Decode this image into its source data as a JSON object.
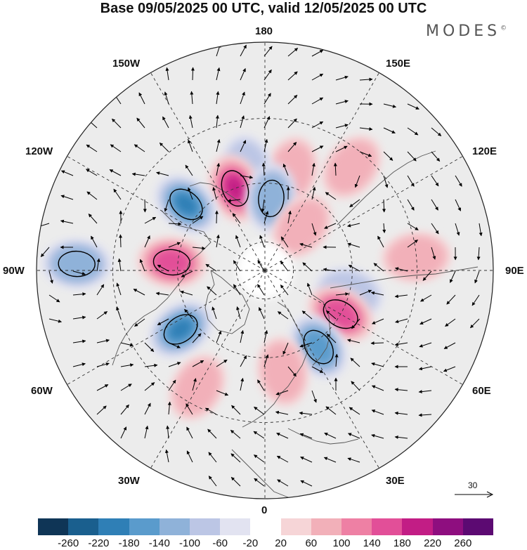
{
  "title": "Base 09/05/2025 00 UTC, valid 12/05/2025 00 UTC",
  "brand": "MODES",
  "brand_mark": "©",
  "longitude_labels": {
    "top": "180",
    "bottom": "0",
    "left": "90W",
    "right": "90E",
    "upper_left_1": "150W",
    "upper_left_2": "120W",
    "upper_right_1": "150E",
    "upper_right_2": "120E",
    "lower_left_1": "60W",
    "lower_left_2": "30W",
    "lower_right_1": "60E",
    "lower_right_2": "30E"
  },
  "vector_scale_label": "30",
  "colorbar": {
    "colors": [
      "#0f3556",
      "#1a5f8e",
      "#2f7fb6",
      "#5a9bcc",
      "#8fb2d9",
      "#bcc6e5",
      "#e2e3f1",
      "#ffffff",
      "#f6d5d7",
      "#f2b0b9",
      "#ee80a4",
      "#e24f98",
      "#c21d85",
      "#8e0e7f",
      "#5c0a72"
    ],
    "ticks": [
      "-260",
      "-220",
      "-180",
      "-140",
      "-100",
      "-60",
      "-20",
      "20",
      "60",
      "100",
      "140",
      "180",
      "220",
      "260"
    ]
  },
  "anomalies": [
    {
      "lon": 165,
      "lat": 55,
      "value": 70,
      "shape": "broad ridge"
    },
    {
      "lon": 140,
      "lat": 45,
      "value": 60,
      "shape": "broad ridge"
    },
    {
      "lon": -170,
      "lat": 55,
      "value": -70,
      "shape": "trough"
    },
    {
      "lon": -160,
      "lat": 60,
      "value": 200,
      "shape": "strong ridge"
    },
    {
      "lon": -130,
      "lat": 55,
      "value": -190,
      "shape": "deep trough"
    },
    {
      "lon": 175,
      "lat": 65,
      "value": -110,
      "shape": "trough"
    },
    {
      "lon": 140,
      "lat": 70,
      "value": 80,
      "shape": "ridge"
    },
    {
      "lon": -95,
      "lat": 58,
      "value": 170,
      "shape": "strong ridge"
    },
    {
      "lon": -92,
      "lat": 30,
      "value": -100,
      "shape": "trough"
    },
    {
      "lon": -55,
      "lat": 55,
      "value": -200,
      "shape": "deep trough"
    },
    {
      "lon": -30,
      "lat": 45,
      "value": 80,
      "shape": "ridge"
    },
    {
      "lon": 75,
      "lat": 60,
      "value": -70,
      "shape": "trough"
    },
    {
      "lon": 60,
      "lat": 60,
      "value": 170,
      "shape": "strong ridge"
    },
    {
      "lon": 35,
      "lat": 58,
      "value": -140,
      "shape": "deep trough"
    },
    {
      "lon": 10,
      "lat": 55,
      "value": 60,
      "shape": "weak ridge"
    },
    {
      "lon": 95,
      "lat": 40,
      "value": 60,
      "shape": "weak ridge"
    }
  ]
}
